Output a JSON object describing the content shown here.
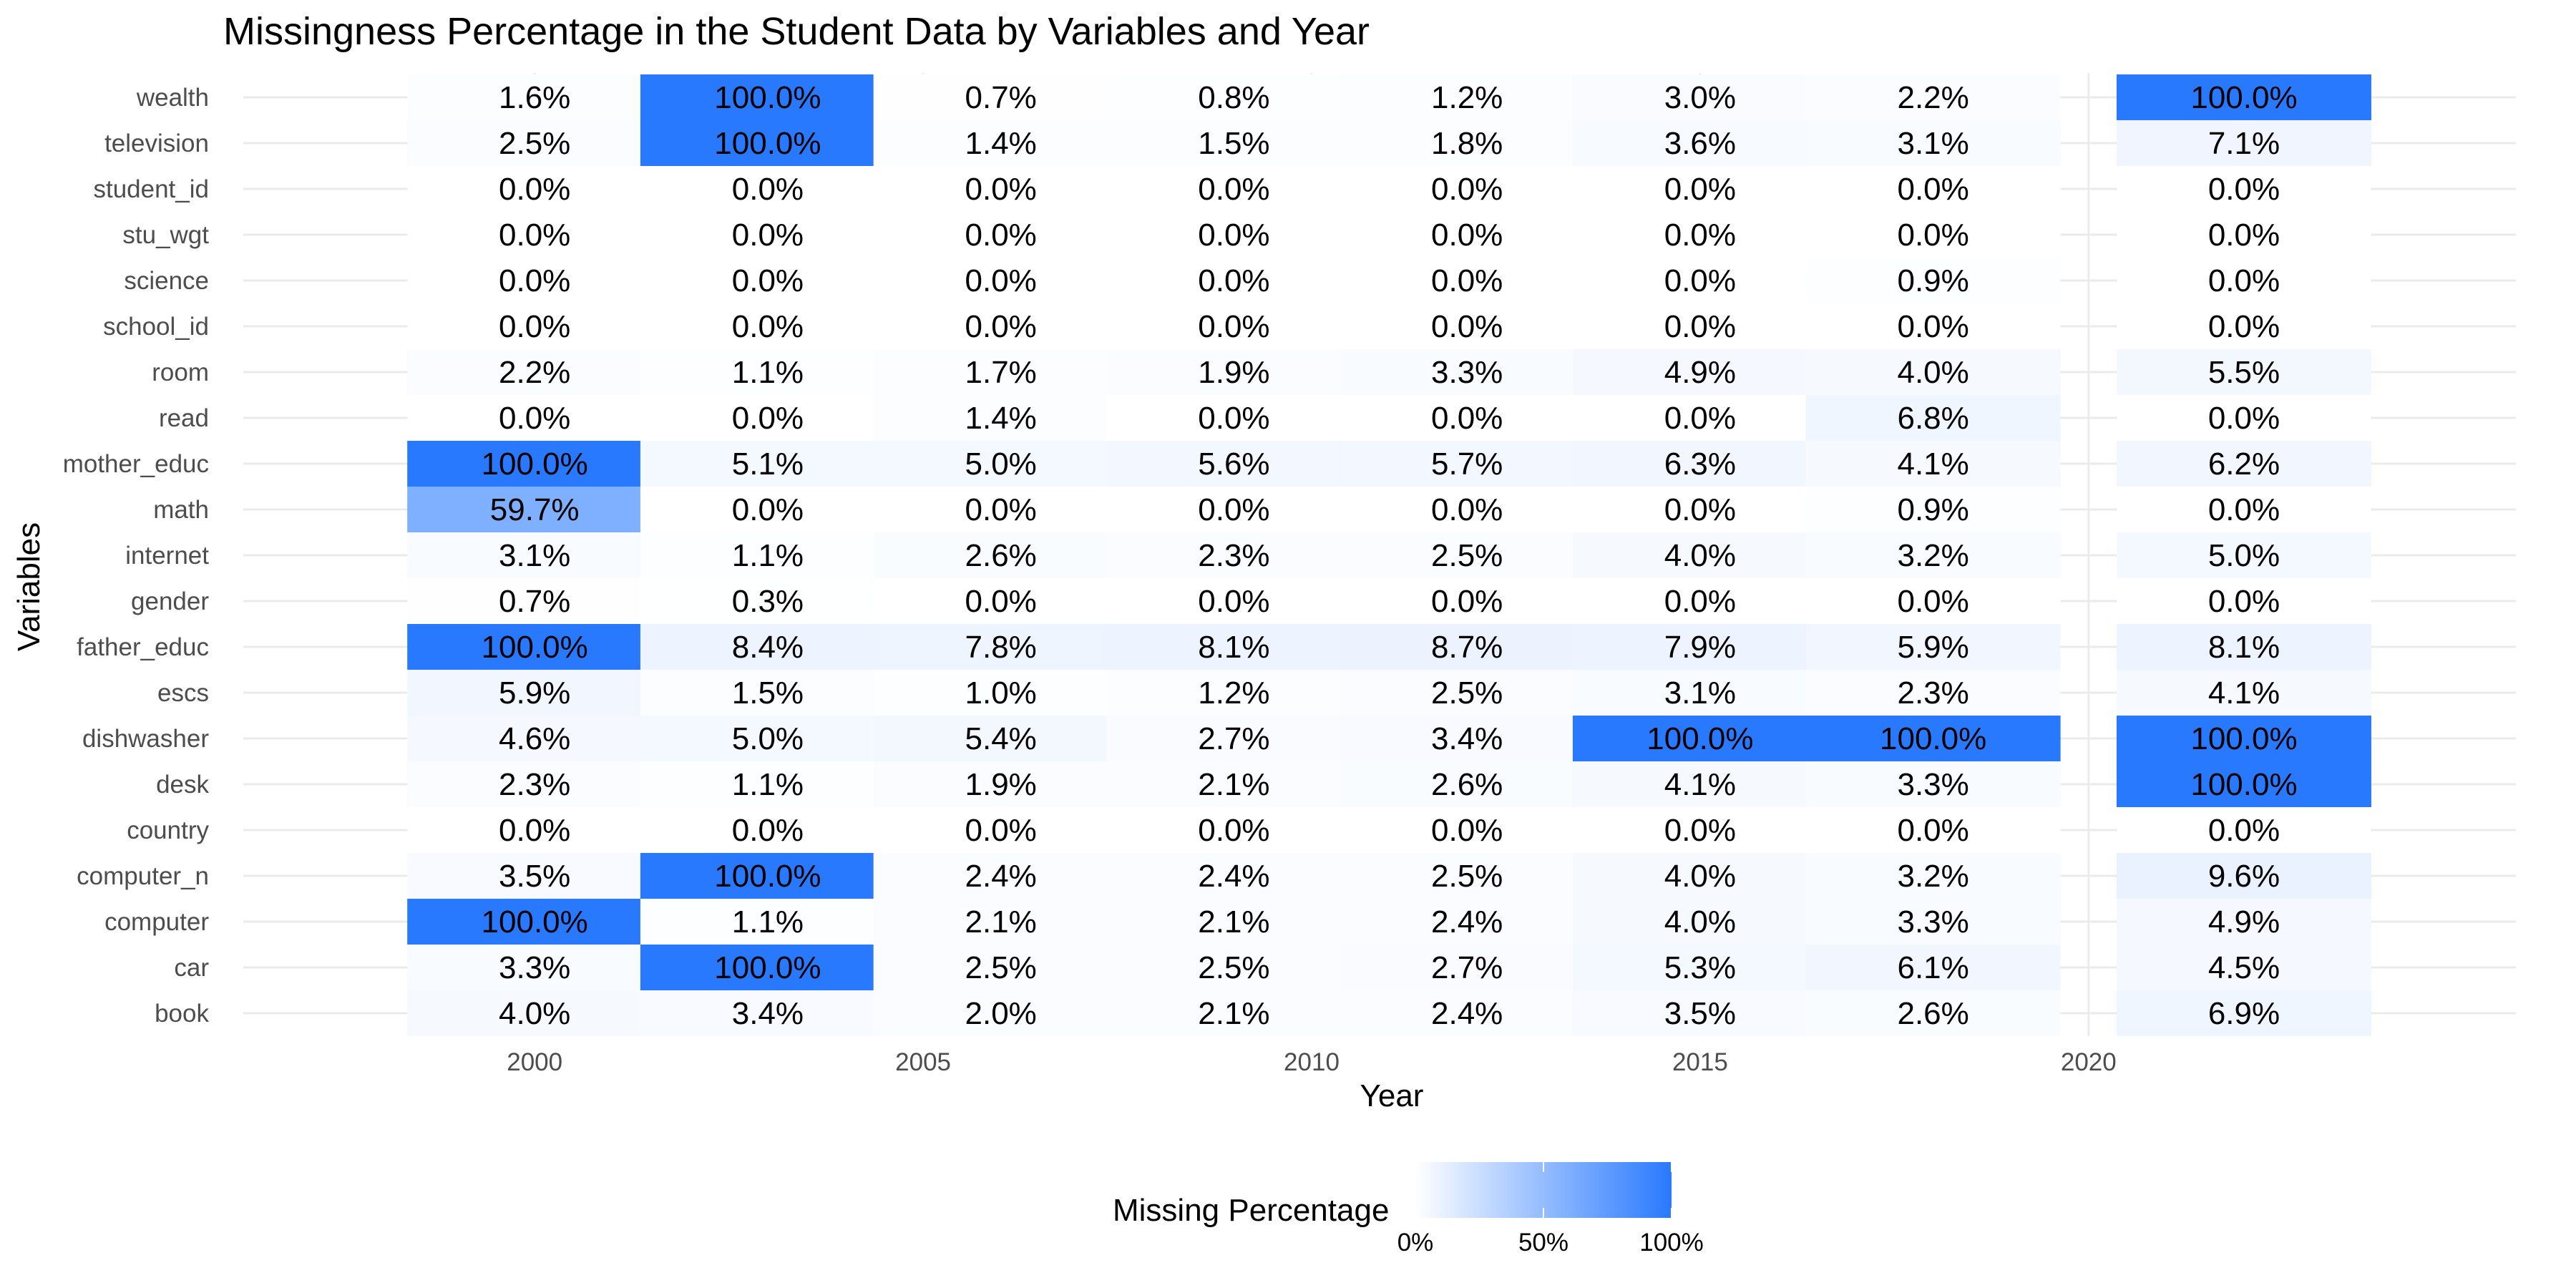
{
  "chart_data": {
    "type": "heatmap",
    "title": "Missingness Percentage in the Student Data by Variables and Year",
    "xlabel": "Year",
    "ylabel": "Variables",
    "x_ticks": [
      2000,
      2005,
      2010,
      2015,
      2020
    ],
    "xlim": [
      1996.25,
      2025.5
    ],
    "years": [
      2000,
      2003,
      2006,
      2009,
      2012,
      2015,
      2018,
      2022
    ],
    "variables": [
      "wealth",
      "television",
      "student_id",
      "stu_wgt",
      "science",
      "school_id",
      "room",
      "read",
      "mother_educ",
      "math",
      "internet",
      "gender",
      "father_educ",
      "escs",
      "dishwasher",
      "desk",
      "country",
      "computer_n",
      "computer",
      "car",
      "book"
    ],
    "values": [
      [
        1.6,
        100.0,
        0.7,
        0.8,
        1.2,
        3.0,
        2.2,
        100.0
      ],
      [
        2.5,
        100.0,
        1.4,
        1.5,
        1.8,
        3.6,
        3.1,
        7.1
      ],
      [
        0.0,
        0.0,
        0.0,
        0.0,
        0.0,
        0.0,
        0.0,
        0.0
      ],
      [
        0.0,
        0.0,
        0.0,
        0.0,
        0.0,
        0.0,
        0.0,
        0.0
      ],
      [
        0.0,
        0.0,
        0.0,
        0.0,
        0.0,
        0.0,
        0.9,
        0.0
      ],
      [
        0.0,
        0.0,
        0.0,
        0.0,
        0.0,
        0.0,
        0.0,
        0.0
      ],
      [
        2.2,
        1.1,
        1.7,
        1.9,
        3.3,
        4.9,
        4.0,
        5.5
      ],
      [
        0.0,
        0.0,
        1.4,
        0.0,
        0.0,
        0.0,
        6.8,
        0.0
      ],
      [
        100.0,
        5.1,
        5.0,
        5.6,
        5.7,
        6.3,
        4.1,
        6.2
      ],
      [
        59.7,
        0.0,
        0.0,
        0.0,
        0.0,
        0.0,
        0.9,
        0.0
      ],
      [
        3.1,
        1.1,
        2.6,
        2.3,
        2.5,
        4.0,
        3.2,
        5.0
      ],
      [
        0.7,
        0.3,
        0.0,
        0.0,
        0.0,
        0.0,
        0.0,
        0.0
      ],
      [
        100.0,
        8.4,
        7.8,
        8.1,
        8.7,
        7.9,
        5.9,
        8.1
      ],
      [
        5.9,
        1.5,
        1.0,
        1.2,
        2.5,
        3.1,
        2.3,
        4.1
      ],
      [
        4.6,
        5.0,
        5.4,
        2.7,
        3.4,
        100.0,
        100.0,
        100.0
      ],
      [
        2.3,
        1.1,
        1.9,
        2.1,
        2.6,
        4.1,
        3.3,
        100.0
      ],
      [
        0.0,
        0.0,
        0.0,
        0.0,
        0.0,
        0.0,
        0.0,
        0.0
      ],
      [
        3.5,
        100.0,
        2.4,
        2.4,
        2.5,
        4.0,
        3.2,
        9.6
      ],
      [
        100.0,
        1.1,
        2.1,
        2.1,
        2.4,
        4.0,
        3.3,
        4.9
      ],
      [
        3.3,
        100.0,
        2.5,
        2.5,
        2.7,
        5.3,
        6.1,
        4.5
      ],
      [
        4.0,
        3.4,
        2.0,
        2.1,
        2.4,
        3.5,
        2.6,
        6.9
      ]
    ],
    "color_scale": {
      "low": "#ffffff",
      "high": "#2979ff",
      "domain": [
        0,
        100
      ]
    },
    "legend": {
      "title": "Missing Percentage",
      "position": "bottom",
      "ticks": [
        0,
        50,
        100
      ],
      "tick_labels": [
        "0%",
        "50%",
        "100%"
      ]
    },
    "grid": true
  }
}
